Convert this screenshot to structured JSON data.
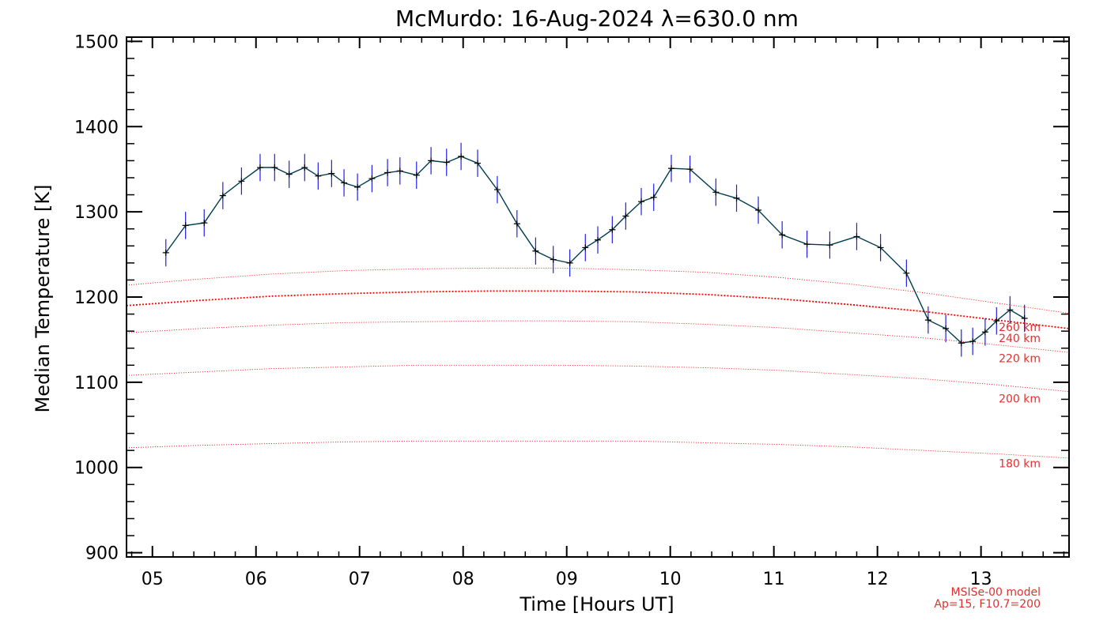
{
  "chart_data": {
    "type": "line",
    "title": "McMurdo: 16-Aug-2024 λ=630.0 nm",
    "xlabel": "Time [Hours UT]",
    "ylabel": "Median Temperature [K]",
    "xlim": [
      4.75,
      13.85
    ],
    "ylim": [
      895,
      1505
    ],
    "xticks": [
      5,
      6,
      7,
      8,
      9,
      10,
      11,
      12,
      13
    ],
    "xtick_labels": [
      "05",
      "06",
      "07",
      "08",
      "09",
      "10",
      "11",
      "12",
      "13"
    ],
    "yticks": [
      900,
      1000,
      1100,
      1200,
      1300,
      1400,
      1500
    ],
    "ytick_labels": [
      "900",
      "1000",
      "1100",
      "1200",
      "1300",
      "1400",
      "1500"
    ],
    "series": [
      {
        "x": [
          5.13,
          5.32,
          5.5,
          5.68,
          5.86,
          6.04,
          6.18,
          6.32,
          6.47,
          6.6,
          6.73,
          6.85,
          6.98,
          7.12,
          7.27,
          7.39,
          7.55,
          7.69,
          7.84,
          7.98,
          8.14,
          8.33,
          8.52,
          8.7,
          8.87,
          9.03,
          9.18,
          9.3,
          9.44,
          9.57,
          9.72,
          9.84,
          10.01,
          10.19,
          10.44,
          10.64,
          10.85,
          11.08,
          11.32,
          11.54,
          11.8,
          12.03,
          12.28,
          12.49,
          12.66,
          12.81,
          12.92,
          13.04,
          13.15,
          13.28,
          13.42
        ],
        "y": [
          1252,
          1284,
          1287,
          1319,
          1336,
          1352,
          1352,
          1344,
          1352,
          1342,
          1345,
          1334,
          1329,
          1339,
          1346,
          1348,
          1343,
          1360,
          1358,
          1365,
          1357,
          1326,
          1286,
          1254,
          1244,
          1240,
          1258,
          1267,
          1279,
          1295,
          1312,
          1317,
          1351,
          1350,
          1323,
          1316,
          1302,
          1273,
          1262,
          1261,
          1271,
          1258,
          1228,
          1173,
          1163,
          1146,
          1148,
          1159,
          1172,
          1185,
          1175
        ],
        "error": 16,
        "line_color": "#003c50",
        "error_color": "#2020e8",
        "marker": "plus"
      }
    ],
    "model_curves": [
      {
        "label": "260 km",
        "y": [
          1214,
          1221,
          1227,
          1231,
          1233,
          1234,
          1234,
          1232,
          1229,
          1223,
          1215,
          1205,
          1193,
          1181
        ]
      },
      {
        "label": "240 km",
        "y": [
          1190,
          1196,
          1201,
          1204,
          1206,
          1207,
          1207,
          1206,
          1203,
          1198,
          1191,
          1183,
          1173,
          1163
        ]
      },
      {
        "label": "220 km",
        "y": [
          1158,
          1163,
          1167,
          1170,
          1171,
          1172,
          1172,
          1171,
          1168,
          1164,
          1158,
          1152,
          1144,
          1135
        ]
      },
      {
        "label": "200 km",
        "y": [
          1108,
          1112,
          1116,
          1118,
          1120,
          1120,
          1120,
          1119,
          1117,
          1114,
          1109,
          1104,
          1097,
          1089
        ]
      },
      {
        "label": "180 km",
        "y": [
          1023,
          1026,
          1028,
          1030,
          1031,
          1031,
          1031,
          1031,
          1029,
          1027,
          1024,
          1020,
          1016,
          1011
        ]
      }
    ],
    "model_curves_x": [
      4.75,
      5.45,
      6.15,
      6.85,
      7.55,
      8.25,
      8.95,
      9.65,
      10.35,
      11.05,
      11.75,
      12.45,
      13.15,
      13.85
    ],
    "model_label_color": "#e03030",
    "model_line_color": "#ff0000",
    "model_note": [
      "MSISe-00 model",
      "Ap=15, F10.7=200"
    ]
  }
}
